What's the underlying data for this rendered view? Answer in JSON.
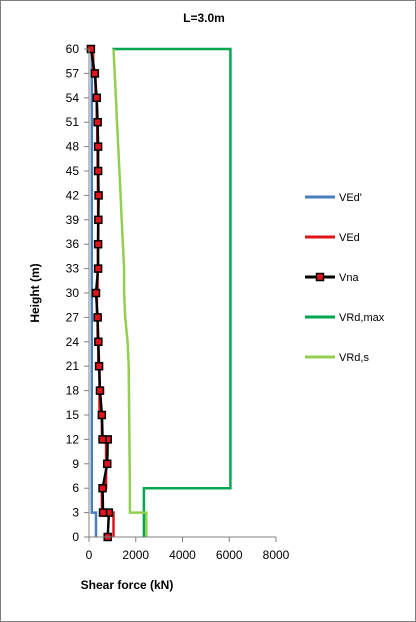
{
  "chart_data": {
    "type": "line",
    "title": "L=3.0m",
    "xlabel": "Shear force (kN)",
    "ylabel": "Height (m)",
    "xlim": [
      0,
      8000
    ],
    "ylim": [
      0,
      60
    ],
    "x_ticks": [
      0,
      2000,
      4000,
      6000,
      8000
    ],
    "y_ticks": [
      0,
      3,
      6,
      9,
      12,
      15,
      18,
      21,
      24,
      27,
      30,
      33,
      36,
      39,
      42,
      45,
      48,
      51,
      54,
      57,
      60
    ],
    "grid": false,
    "legend_position": "right",
    "series": [
      {
        "name": "VEd'",
        "color": "#4a7ebb",
        "marker": "none",
        "points": [
          [
            300,
            0
          ],
          [
            300,
            3
          ],
          [
            120,
            3
          ],
          [
            120,
            60
          ]
        ]
      },
      {
        "name": "VEd",
        "color": "#e0151b",
        "marker": "none",
        "points": [
          [
            1050,
            0
          ],
          [
            1050,
            3
          ],
          [
            550,
            3
          ],
          [
            550,
            6
          ],
          [
            730,
            6
          ],
          [
            730,
            9
          ],
          [
            730,
            12
          ],
          [
            550,
            12
          ],
          [
            550,
            15
          ],
          [
            450,
            15
          ],
          [
            450,
            18
          ],
          [
            450,
            21
          ],
          [
            400,
            21
          ],
          [
            400,
            24
          ],
          [
            370,
            24
          ],
          [
            370,
            27
          ],
          [
            340,
            27
          ],
          [
            340,
            30
          ],
          [
            370,
            30
          ],
          [
            370,
            33
          ],
          [
            380,
            33
          ],
          [
            380,
            36
          ],
          [
            390,
            36
          ],
          [
            390,
            39
          ],
          [
            390,
            42
          ],
          [
            380,
            42
          ],
          [
            380,
            45
          ],
          [
            370,
            45
          ],
          [
            370,
            48
          ],
          [
            350,
            48
          ],
          [
            350,
            51
          ],
          [
            330,
            51
          ],
          [
            330,
            54
          ],
          [
            280,
            54
          ],
          [
            280,
            57
          ],
          [
            180,
            57
          ],
          [
            180,
            60
          ],
          [
            0,
            60
          ]
        ]
      },
      {
        "name": "Vna",
        "color": "#000000",
        "marker": "square",
        "marker_color": "#e0151b",
        "points": [
          [
            800,
            0
          ],
          [
            850,
            3
          ],
          [
            600,
            3
          ],
          [
            580,
            6
          ],
          [
            780,
            9
          ],
          [
            800,
            12
          ],
          [
            580,
            12
          ],
          [
            550,
            15
          ],
          [
            470,
            18
          ],
          [
            430,
            21
          ],
          [
            400,
            24
          ],
          [
            370,
            27
          ],
          [
            300,
            30
          ],
          [
            390,
            33
          ],
          [
            390,
            36
          ],
          [
            400,
            39
          ],
          [
            410,
            42
          ],
          [
            390,
            45
          ],
          [
            390,
            48
          ],
          [
            370,
            51
          ],
          [
            330,
            54
          ],
          [
            250,
            57
          ],
          [
            80,
            60
          ]
        ]
      },
      {
        "name": "VRd,max",
        "color": "#00a650",
        "marker": "none",
        "points": [
          [
            2350,
            0
          ],
          [
            2350,
            3
          ],
          [
            2350,
            6
          ],
          [
            6050,
            6
          ],
          [
            6050,
            60
          ],
          [
            1000,
            60
          ]
        ]
      },
      {
        "name": "VRd,s",
        "color": "#92d050",
        "marker": "none",
        "points": [
          [
            2450,
            0
          ],
          [
            2450,
            3
          ],
          [
            1750,
            3
          ],
          [
            1750,
            6
          ],
          [
            1700,
            21
          ],
          [
            1650,
            24
          ],
          [
            1550,
            27
          ],
          [
            1500,
            30
          ],
          [
            1500,
            33
          ],
          [
            1450,
            36
          ],
          [
            1400,
            39
          ],
          [
            1350,
            42
          ],
          [
            1300,
            45
          ],
          [
            1250,
            48
          ],
          [
            1200,
            51
          ],
          [
            1150,
            54
          ],
          [
            1100,
            57
          ],
          [
            1050,
            60
          ]
        ]
      }
    ]
  }
}
